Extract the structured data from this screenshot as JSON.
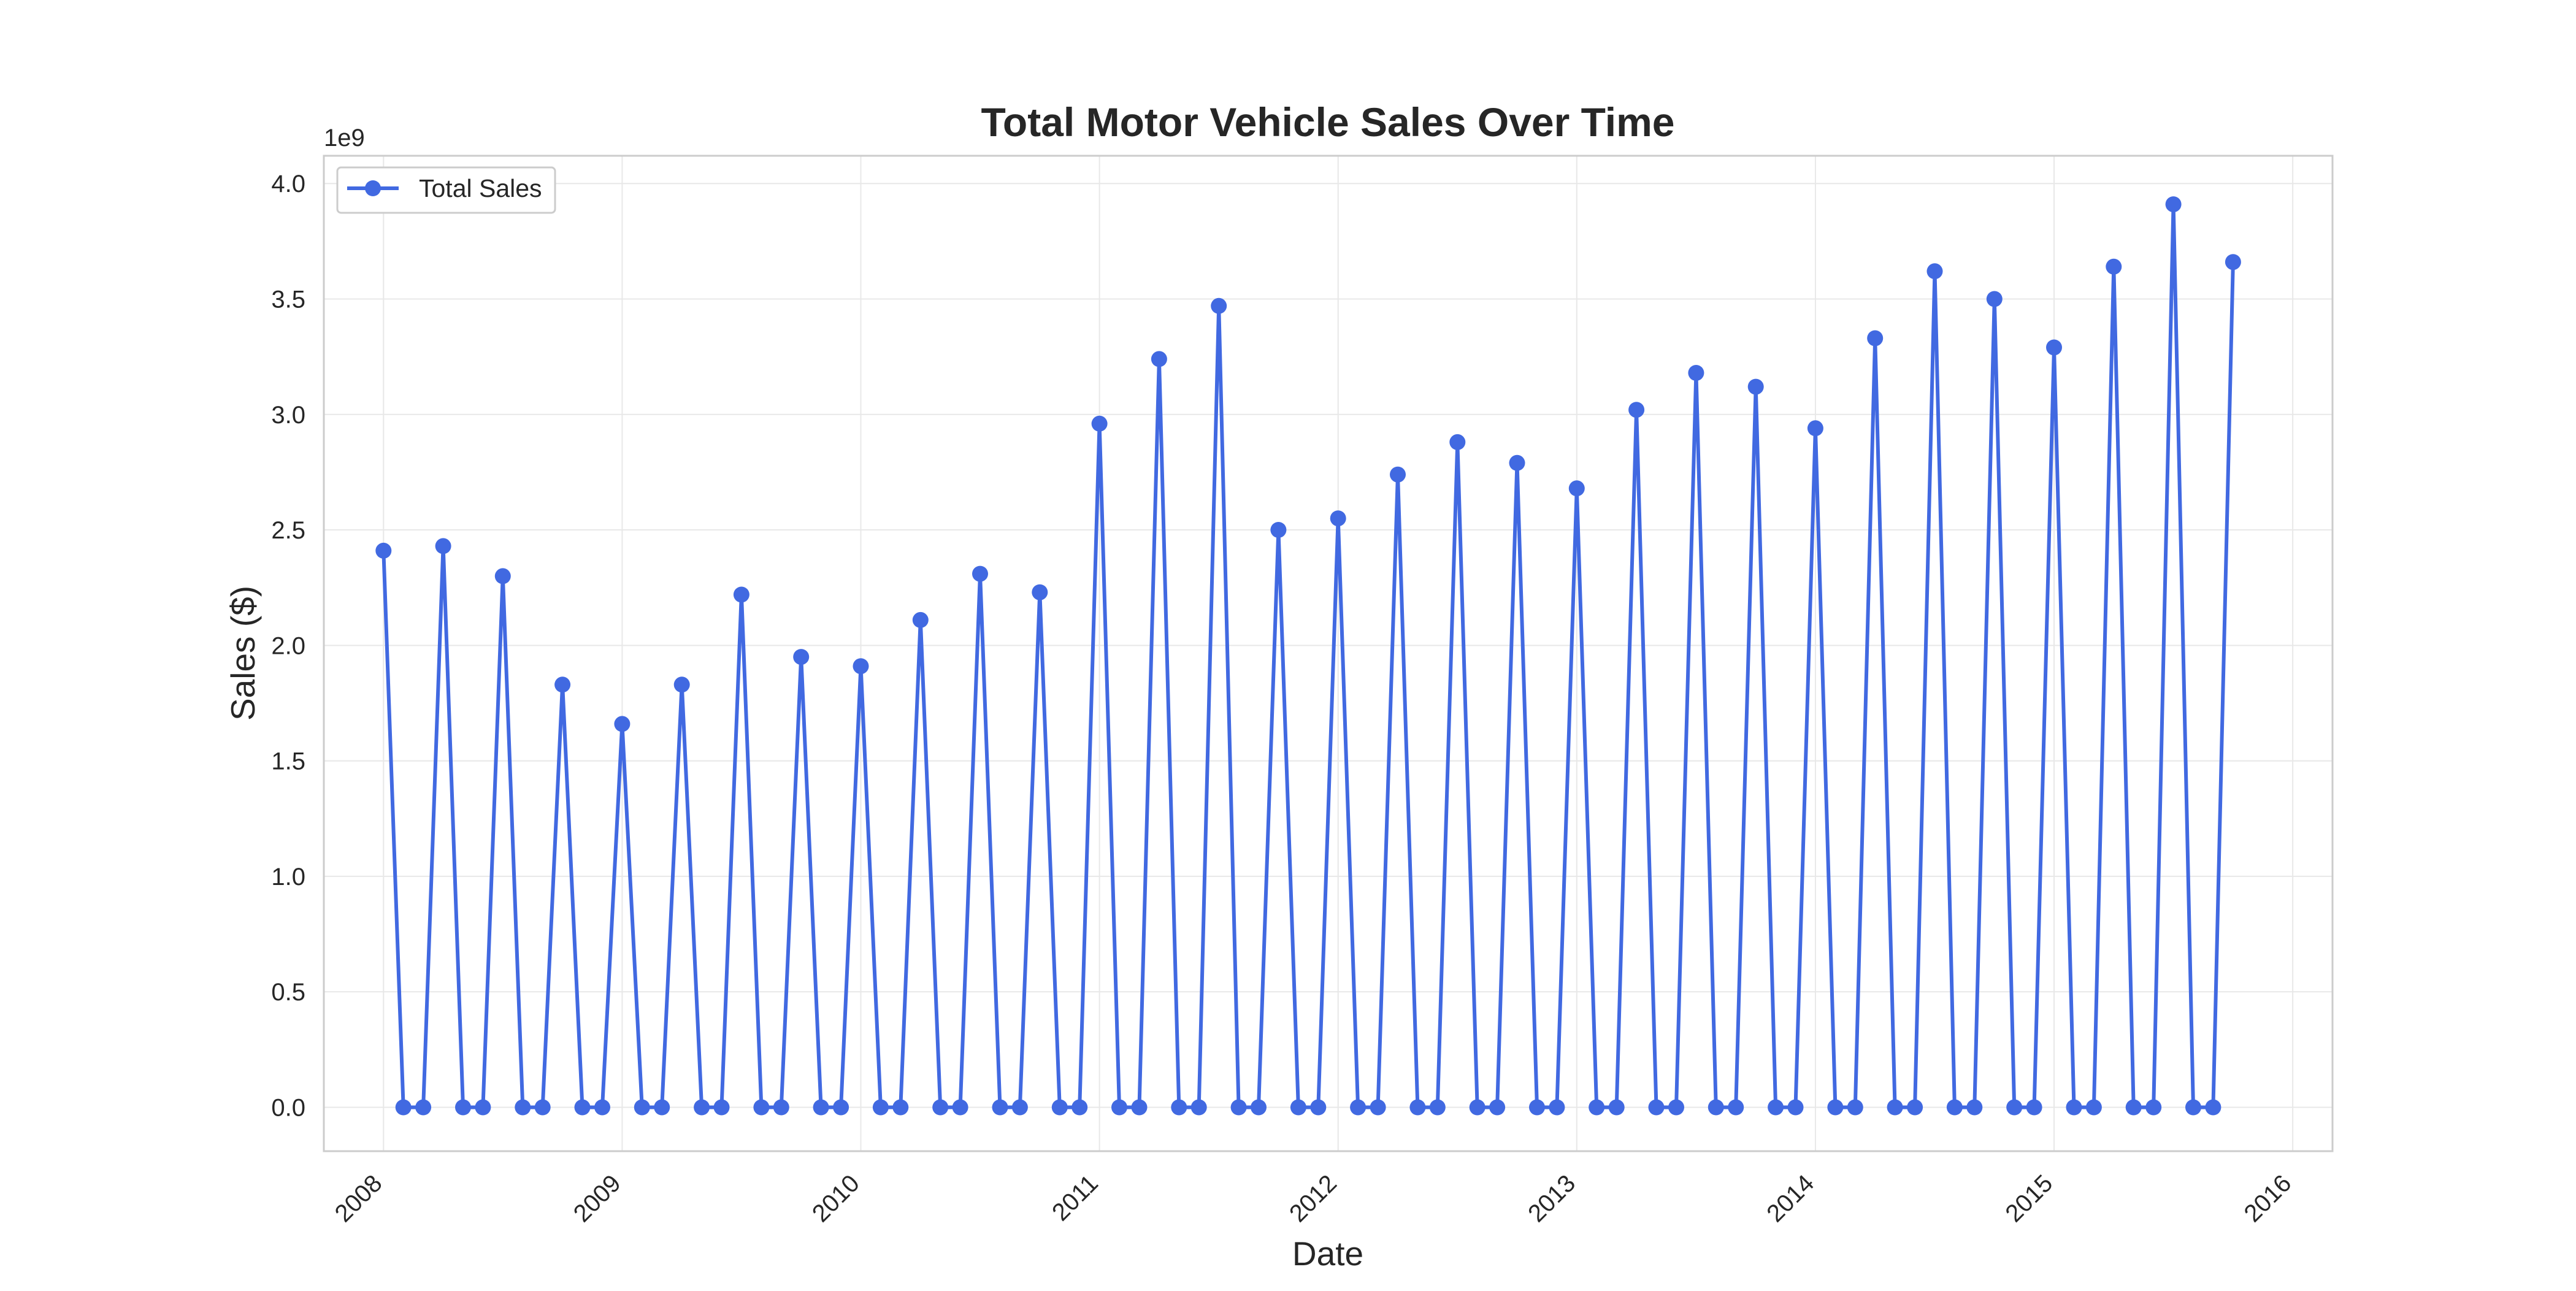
{
  "chart_data": {
    "type": "line",
    "title": "Total Motor Vehicle Sales Over Time",
    "xlabel": "Date",
    "ylabel": "Sales ($)",
    "y_offset_label": "1e9",
    "y_unit_multiplier": 1000000000,
    "xlim": [
      "2007-10-01",
      "2016-03-01"
    ],
    "ylim": [
      -0.19,
      4.12
    ],
    "x_ticks": [
      "2008",
      "2009",
      "2010",
      "2011",
      "2012",
      "2013",
      "2014",
      "2015",
      "2016"
    ],
    "y_ticks": [
      "0.0",
      "0.5",
      "1.0",
      "1.5",
      "2.0",
      "2.5",
      "3.0",
      "3.5",
      "4.0"
    ],
    "grid": true,
    "legend_position": "upper-left",
    "series": [
      {
        "name": "Total Sales",
        "color": "#4169e1",
        "marker": "circle",
        "x": [
          "2008-01",
          "2008-02",
          "2008-03",
          "2008-04",
          "2008-05",
          "2008-06",
          "2008-07",
          "2008-08",
          "2008-09",
          "2008-10",
          "2008-11",
          "2008-12",
          "2009-01",
          "2009-02",
          "2009-03",
          "2009-04",
          "2009-05",
          "2009-06",
          "2009-07",
          "2009-08",
          "2009-09",
          "2009-10",
          "2009-11",
          "2009-12",
          "2010-01",
          "2010-02",
          "2010-03",
          "2010-04",
          "2010-05",
          "2010-06",
          "2010-07",
          "2010-08",
          "2010-09",
          "2010-10",
          "2010-11",
          "2010-12",
          "2011-01",
          "2011-02",
          "2011-03",
          "2011-04",
          "2011-05",
          "2011-06",
          "2011-07",
          "2011-08",
          "2011-09",
          "2011-10",
          "2011-11",
          "2011-12",
          "2012-01",
          "2012-02",
          "2012-03",
          "2012-04",
          "2012-05",
          "2012-06",
          "2012-07",
          "2012-08",
          "2012-09",
          "2012-10",
          "2012-11",
          "2012-12",
          "2013-01",
          "2013-02",
          "2013-03",
          "2013-04",
          "2013-05",
          "2013-06",
          "2013-07",
          "2013-08",
          "2013-09",
          "2013-10",
          "2013-11",
          "2013-12",
          "2014-01",
          "2014-02",
          "2014-03",
          "2014-04",
          "2014-05",
          "2014-06",
          "2014-07",
          "2014-08",
          "2014-09",
          "2014-10",
          "2014-11",
          "2014-12",
          "2015-01",
          "2015-02",
          "2015-03",
          "2015-04",
          "2015-05",
          "2015-06",
          "2015-07",
          "2015-08",
          "2015-09",
          "2015-10"
        ],
        "values": [
          2.41,
          0,
          0,
          2.43,
          0,
          0,
          2.3,
          0,
          0,
          1.83,
          0,
          0,
          1.66,
          0,
          0,
          1.83,
          0,
          0,
          2.22,
          0,
          0,
          1.95,
          0,
          0,
          1.91,
          0,
          0,
          2.11,
          0,
          0,
          2.31,
          0,
          0,
          2.23,
          0,
          0,
          2.96,
          0,
          0,
          3.24,
          0,
          0,
          3.47,
          0,
          0,
          2.5,
          0,
          0,
          2.55,
          0,
          0,
          2.74,
          0,
          0,
          2.88,
          0,
          0,
          2.79,
          0,
          0,
          2.68,
          0,
          0,
          3.02,
          0,
          0,
          3.18,
          0,
          0,
          3.12,
          0,
          0,
          2.94,
          0,
          0,
          3.33,
          0,
          0,
          3.62,
          0,
          0,
          3.5,
          0,
          0,
          3.29,
          0,
          0,
          3.64,
          0,
          0,
          3.91,
          0,
          0,
          3.66
        ]
      }
    ]
  }
}
